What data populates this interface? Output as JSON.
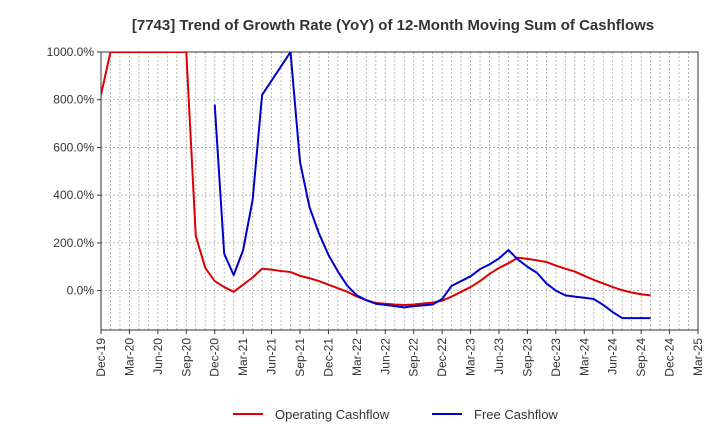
{
  "chart_data": {
    "type": "line",
    "title": "[7743]  Trend of Growth Rate (YoY) of 12-Month Moving Sum of Cashflows",
    "xlabel": "",
    "ylabel": "",
    "x_tick_labels": [
      "Dec-19",
      "Mar-20",
      "Jun-20",
      "Sep-20",
      "Dec-20",
      "Mar-21",
      "Jun-21",
      "Sep-21",
      "Dec-21",
      "Mar-22",
      "Jun-22",
      "Sep-22",
      "Dec-22",
      "Mar-23",
      "Jun-23",
      "Sep-23",
      "Dec-23",
      "Mar-24",
      "Jun-24",
      "Sep-24",
      "Dec-24",
      "Mar-25"
    ],
    "y_ticks": [
      0,
      200,
      400,
      600,
      800,
      1000
    ],
    "y_tick_labels": [
      "0.0%",
      "200.0%",
      "400.0%",
      "600.0%",
      "800.0%",
      "1000.0%"
    ],
    "ylim": [
      -165,
      1000
    ],
    "grid": true,
    "legend_position": "bottom",
    "colors": {
      "operating": "#dd0000",
      "free": "#0000cc",
      "grid": "#aaaaaa",
      "axis": "#333333"
    },
    "series": [
      {
        "name": "Operating Cashflow",
        "color": "#dd0000",
        "points": [
          {
            "x": "Dec-19",
            "y": 820
          },
          {
            "x": "Jan-20",
            "y": 1000
          },
          {
            "x": "Aug-20",
            "y": 1000
          },
          {
            "x": "Sep-20",
            "y": 1000
          },
          {
            "x": "Oct-20",
            "y": 230
          },
          {
            "x": "Nov-20",
            "y": 95
          },
          {
            "x": "Dec-20",
            "y": 40
          },
          {
            "x": "Jan-21",
            "y": 15
          },
          {
            "x": "Feb-21",
            "y": -5
          },
          {
            "x": "Mar-21",
            "y": 25
          },
          {
            "x": "Apr-21",
            "y": 55
          },
          {
            "x": "May-21",
            "y": 92
          },
          {
            "x": "Jun-21",
            "y": 88
          },
          {
            "x": "Jul-21",
            "y": 82
          },
          {
            "x": "Aug-21",
            "y": 78
          },
          {
            "x": "Sep-21",
            "y": 62
          },
          {
            "x": "Oct-21",
            "y": 52
          },
          {
            "x": "Nov-21",
            "y": 40
          },
          {
            "x": "Dec-21",
            "y": 25
          },
          {
            "x": "Jan-22",
            "y": 10
          },
          {
            "x": "Feb-22",
            "y": -5
          },
          {
            "x": "Mar-22",
            "y": -25
          },
          {
            "x": "Apr-22",
            "y": -40
          },
          {
            "x": "May-22",
            "y": -52
          },
          {
            "x": "Jun-22",
            "y": -55
          },
          {
            "x": "Jul-22",
            "y": -58
          },
          {
            "x": "Aug-22",
            "y": -60
          },
          {
            "x": "Sep-22",
            "y": -58
          },
          {
            "x": "Oct-22",
            "y": -54
          },
          {
            "x": "Nov-22",
            "y": -50
          },
          {
            "x": "Dec-22",
            "y": -42
          },
          {
            "x": "Jan-23",
            "y": -25
          },
          {
            "x": "Feb-23",
            "y": -5
          },
          {
            "x": "Mar-23",
            "y": 15
          },
          {
            "x": "Apr-23",
            "y": 40
          },
          {
            "x": "May-23",
            "y": 70
          },
          {
            "x": "Jun-23",
            "y": 95
          },
          {
            "x": "Jul-23",
            "y": 115
          },
          {
            "x": "Aug-23",
            "y": 138
          },
          {
            "x": "Sep-23",
            "y": 133
          },
          {
            "x": "Oct-23",
            "y": 127
          },
          {
            "x": "Nov-23",
            "y": 120
          },
          {
            "x": "Dec-23",
            "y": 105
          },
          {
            "x": "Jan-24",
            "y": 92
          },
          {
            "x": "Feb-24",
            "y": 80
          },
          {
            "x": "Mar-24",
            "y": 62
          },
          {
            "x": "Apr-24",
            "y": 45
          },
          {
            "x": "May-24",
            "y": 30
          },
          {
            "x": "Jun-24",
            "y": 15
          },
          {
            "x": "Jul-24",
            "y": 2
          },
          {
            "x": "Aug-24",
            "y": -8
          },
          {
            "x": "Sep-24",
            "y": -15
          },
          {
            "x": "Oct-24",
            "y": -20
          }
        ]
      },
      {
        "name": "Free Cashflow",
        "color": "#0000cc",
        "points": [
          {
            "x": "Dec-20",
            "y": 780
          },
          {
            "x": "Jan-21",
            "y": 155
          },
          {
            "x": "Feb-21",
            "y": 65
          },
          {
            "x": "Mar-21",
            "y": 170
          },
          {
            "x": "Apr-21",
            "y": 380
          },
          {
            "x": "May-21",
            "y": 820
          },
          {
            "x": "Jun-21",
            "y": 880
          },
          {
            "x": "Jul-21",
            "y": 940
          },
          {
            "x": "Aug-21",
            "y": 1000
          },
          {
            "x": "Sep-21",
            "y": 540
          },
          {
            "x": "Oct-21",
            "y": 350
          },
          {
            "x": "Nov-21",
            "y": 240
          },
          {
            "x": "Dec-21",
            "y": 150
          },
          {
            "x": "Jan-22",
            "y": 80
          },
          {
            "x": "Feb-22",
            "y": 20
          },
          {
            "x": "Mar-22",
            "y": -20
          },
          {
            "x": "Apr-22",
            "y": -40
          },
          {
            "x": "May-22",
            "y": -55
          },
          {
            "x": "Jun-22",
            "y": -60
          },
          {
            "x": "Jul-22",
            "y": -65
          },
          {
            "x": "Aug-22",
            "y": -70
          },
          {
            "x": "Sep-22",
            "y": -65
          },
          {
            "x": "Oct-22",
            "y": -62
          },
          {
            "x": "Nov-22",
            "y": -58
          },
          {
            "x": "Dec-22",
            "y": -35
          },
          {
            "x": "Jan-23",
            "y": 20
          },
          {
            "x": "Feb-23",
            "y": 40
          },
          {
            "x": "Mar-23",
            "y": 60
          },
          {
            "x": "Apr-23",
            "y": 90
          },
          {
            "x": "May-23",
            "y": 110
          },
          {
            "x": "Jun-23",
            "y": 135
          },
          {
            "x": "Jul-23",
            "y": 170
          },
          {
            "x": "Aug-23",
            "y": 130
          },
          {
            "x": "Sep-23",
            "y": 100
          },
          {
            "x": "Oct-23",
            "y": 75
          },
          {
            "x": "Nov-23",
            "y": 30
          },
          {
            "x": "Dec-23",
            "y": 0
          },
          {
            "x": "Jan-24",
            "y": -20
          },
          {
            "x": "Feb-24",
            "y": -25
          },
          {
            "x": "Mar-24",
            "y": -30
          },
          {
            "x": "Apr-24",
            "y": -35
          },
          {
            "x": "May-24",
            "y": -60
          },
          {
            "x": "Jun-24",
            "y": -90
          },
          {
            "x": "Jul-24",
            "y": -115
          },
          {
            "x": "Aug-24",
            "y": -115
          },
          {
            "x": "Sep-24",
            "y": -115
          },
          {
            "x": "Oct-24",
            "y": -115
          }
        ]
      }
    ]
  }
}
